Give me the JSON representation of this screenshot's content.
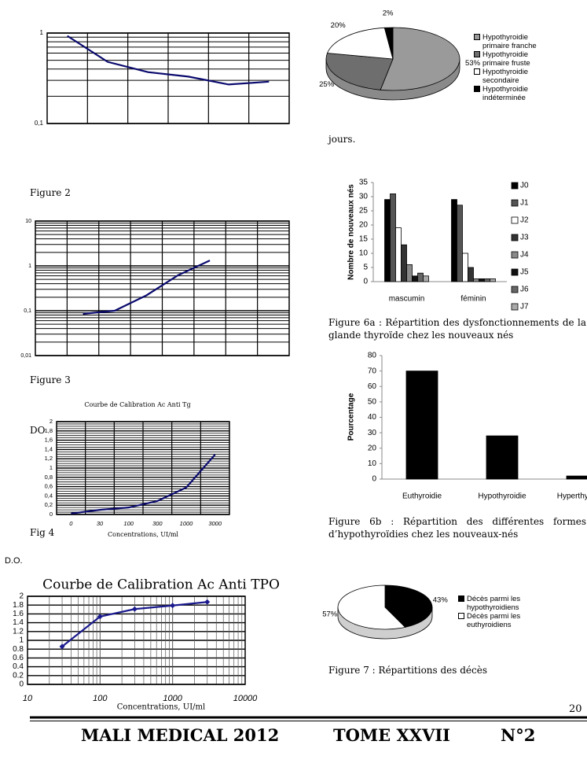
{
  "chart_data": [
    {
      "type": "line",
      "categories": [
        null,
        null,
        null,
        null,
        null,
        null
      ],
      "values": [
        0.93,
        0.48,
        0.37,
        0.33,
        0.27,
        0.29
      ],
      "color": "#0a0a6e",
      "ylim": [
        0.1,
        1
      ],
      "yticks": [
        {
          "value": 0.1,
          "label": "0,1"
        },
        1
      ],
      "ylog": true,
      "grid": true
    },
    {
      "type": "line",
      "categories": [
        null,
        null,
        null,
        null,
        null,
        null,
        null,
        null
      ],
      "values": [
        null,
        0.085,
        0.1,
        0.22,
        0.62,
        1.32,
        null,
        null
      ],
      "color": "#0a0a6e",
      "ylim": [
        0.01,
        10
      ],
      "yticks": [
        {
          "value": 0.01,
          "label": "0,01"
        },
        {
          "value": 0.1,
          "label": "0,1"
        },
        1,
        10
      ],
      "ylog": true,
      "grid": true
    },
    {
      "type": "line",
      "title": "Courbe de Calibration Ac Anti Tg",
      "y_label": "DO",
      "x_label": "Concentrations, UI/ml",
      "categories": [
        "0",
        "30",
        "100",
        "300",
        "1000",
        "3000"
      ],
      "values": [
        0.02,
        0.1,
        0.15,
        0.29,
        0.58,
        1.29
      ],
      "color": "#0a0a6e",
      "ylim": [
        0,
        2
      ],
      "yticks": [
        0,
        {
          "value": 0.2,
          "label": "0,2"
        },
        {
          "value": 0.4,
          "label": "0,4"
        },
        {
          "value": 0.6,
          "label": "0,6"
        },
        {
          "value": 0.8,
          "label": "0,8"
        },
        1,
        {
          "value": 1.2,
          "label": "1,2"
        },
        {
          "value": 1.4,
          "label": "1,4"
        },
        {
          "value": 1.6,
          "label": "1,6"
        },
        {
          "value": 1.8,
          "label": "1,8"
        },
        2
      ],
      "grid": true
    },
    {
      "type": "line",
      "title": "Courbe de Calibration Ac Anti TPO",
      "y_label": "D.O.",
      "x_label": "Concentrations, UI/ml",
      "x": [
        30,
        100,
        300,
        1000,
        3000
      ],
      "values": [
        0.86,
        1.54,
        1.71,
        1.79,
        1.87
      ],
      "color": "#1a1a8e",
      "xlim": [
        10,
        10000
      ],
      "xticks": [
        10,
        100,
        1000,
        10000
      ],
      "xlog": true,
      "ylim": [
        0,
        2
      ],
      "yticks": [
        0,
        0.2,
        0.4,
        0.6,
        0.8,
        1,
        1.2,
        1.4,
        1.6,
        1.8,
        2
      ],
      "grid": true
    },
    {
      "type": "pie",
      "labels": [
        "Hypothyroidie primaire franche",
        "Hypothyroidie primaire fruste",
        "Hypothyroidie secondaire",
        "Hypothyroidie indéterminée"
      ],
      "values": [
        53,
        25,
        20,
        2
      ],
      "value_labels": [
        "53%",
        "25%",
        "20%",
        "2%"
      ],
      "colors": [
        "#9a9a9a",
        "#6e6e6e",
        "#ffffff",
        "#000000"
      ]
    },
    {
      "type": "bar",
      "y_label": "Nombre de nouveaux nés",
      "categories": [
        "mascumin",
        "féminin"
      ],
      "series": [
        {
          "name": "J0",
          "color": "#000000",
          "values": [
            29,
            29
          ]
        },
        {
          "name": "J1",
          "color": "#555555",
          "values": [
            31,
            27
          ]
        },
        {
          "name": "J2",
          "color": "#ffffff",
          "values": [
            19,
            10
          ]
        },
        {
          "name": "J3",
          "color": "#333333",
          "values": [
            13,
            5
          ]
        },
        {
          "name": "J4",
          "color": "#8a8a8a",
          "values": [
            6,
            1
          ]
        },
        {
          "name": "J5",
          "color": "#111111",
          "values": [
            2,
            1
          ]
        },
        {
          "name": "J6",
          "color": "#666666",
          "values": [
            3,
            1
          ]
        },
        {
          "name": "J7",
          "color": "#aaaaaa",
          "values": [
            2,
            1
          ]
        }
      ],
      "ylim": [
        0,
        35
      ],
      "yticks": [
        0,
        5,
        10,
        15,
        20,
        25,
        30,
        35
      ]
    },
    {
      "type": "bar",
      "y_label": "Pourcentage",
      "categories": [
        "Euthyroidie",
        "Hypothyroidie",
        "Hyperthyroidie"
      ],
      "values": [
        70,
        28,
        2
      ],
      "color": "#000000",
      "ylim": [
        0,
        80
      ],
      "yticks": [
        0,
        10,
        20,
        30,
        40,
        50,
        60,
        70,
        80
      ]
    },
    {
      "type": "pie",
      "labels": [
        "Décès parmi les hypothyroidiens",
        "Décès parmi les euthyroidiens"
      ],
      "values": [
        43,
        57
      ],
      "value_labels": [
        "43%",
        "57%"
      ],
      "colors": [
        "#000000",
        "#ffffff"
      ]
    }
  ],
  "document": {
    "figure_2": "Figure 2",
    "figure_3": "Figure 3",
    "fig_4": "Fig 4",
    "jours": "jours.",
    "caption_6a": "Figure 6a : Répartition des dysfonctionnements de la glande thyroïde chez les nouveaux nés",
    "caption_6b": "Figure 6b : Répartition des différentes formes d’hypothyroïdies chez les nouveaux-nés",
    "caption_7": "Figure 7 : Répartitions des décès",
    "page_number": 20,
    "footer": [
      "MALI MEDICAL 2012",
      "TOME XXVII",
      "N°2"
    ]
  }
}
